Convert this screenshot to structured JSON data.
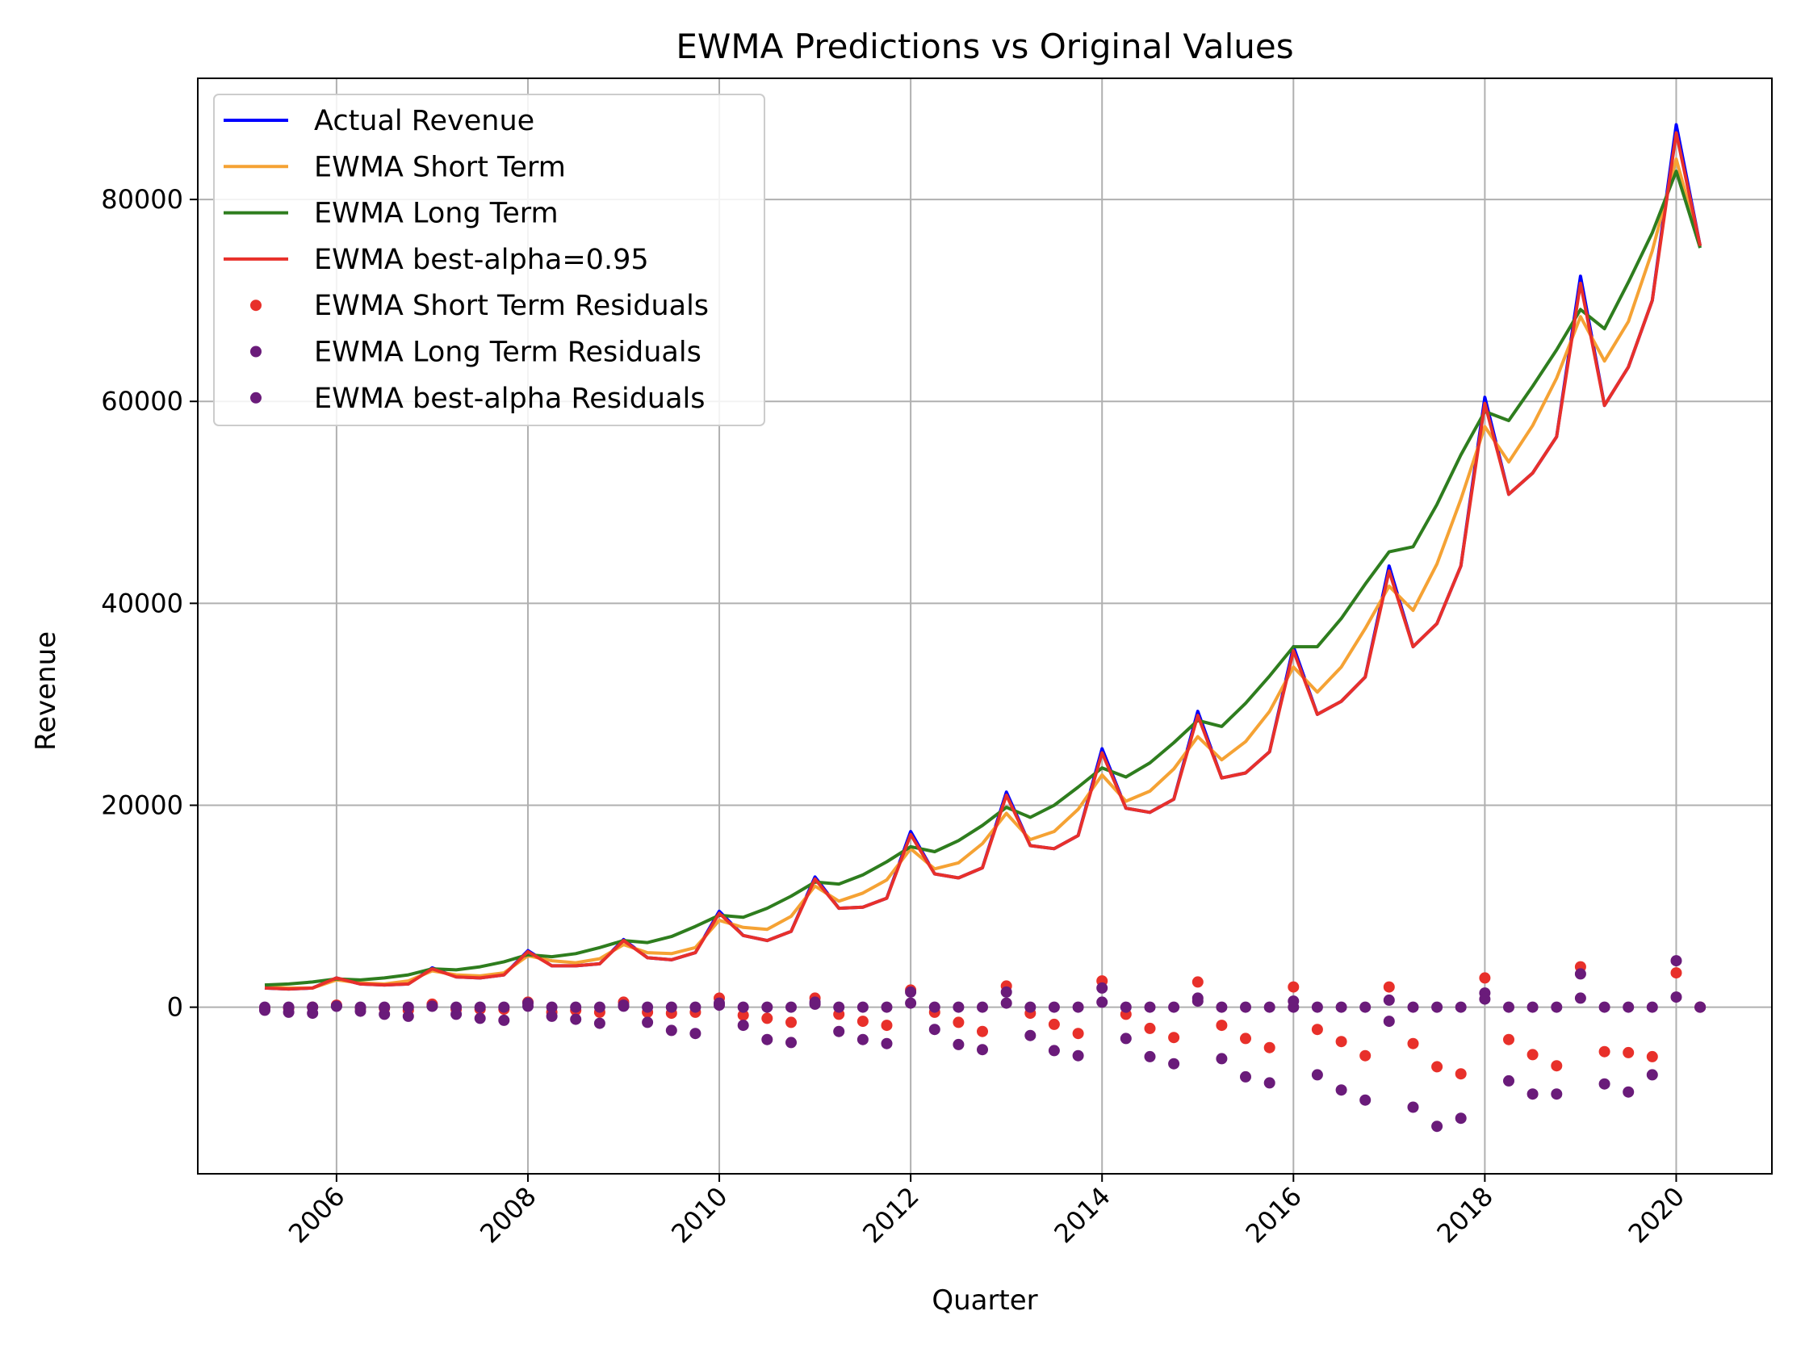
{
  "chart_data": {
    "type": "line",
    "title": "EWMA Predictions vs Original Values",
    "xlabel": "Quarter",
    "ylabel": "Revenue",
    "xlim": [
      2004.55,
      2021.0
    ],
    "ylim": [
      -16500,
      92000
    ],
    "x_ticks": [
      {
        "value": 2006,
        "label": "2006"
      },
      {
        "value": 2008,
        "label": "2008"
      },
      {
        "value": 2010,
        "label": "2010"
      },
      {
        "value": 2012,
        "label": "2012"
      },
      {
        "value": 2014,
        "label": "2014"
      },
      {
        "value": 2016,
        "label": "2016"
      },
      {
        "value": 2018,
        "label": "2018"
      },
      {
        "value": 2020,
        "label": "2020"
      }
    ],
    "y_ticks": [
      {
        "value": 0,
        "label": "0"
      },
      {
        "value": 20000,
        "label": "20000"
      },
      {
        "value": 40000,
        "label": "40000"
      },
      {
        "value": 60000,
        "label": "60000"
      },
      {
        "value": 80000,
        "label": "80000"
      }
    ],
    "grid": true,
    "legend_position": "top-left",
    "x_tick_rotation": "45 degrees",
    "x": [
      2005.25,
      2005.5,
      2005.75,
      2006,
      2006.25,
      2006.5,
      2006.75,
      2007,
      2007.25,
      2007.5,
      2007.75,
      2008,
      2008.25,
      2008.5,
      2008.75,
      2009,
      2009.25,
      2009.5,
      2009.75,
      2010,
      2010.25,
      2010.5,
      2010.75,
      2011,
      2011.25,
      2011.5,
      2011.75,
      2012,
      2012.25,
      2012.5,
      2012.75,
      2013,
      2013.25,
      2013.5,
      2013.75,
      2014,
      2014.25,
      2014.5,
      2014.75,
      2015,
      2015.25,
      2015.5,
      2015.75,
      2016,
      2016.25,
      2016.5,
      2016.75,
      2017,
      2017.25,
      2017.5,
      2017.75,
      2018,
      2018.25,
      2018.5,
      2018.75,
      2019,
      2019.25,
      2019.5,
      2019.75,
      2020,
      2020.25
    ],
    "series": [
      {
        "name": "Actual Revenue",
        "kind": "line",
        "color": "#0000ff",
        "values": [
          1900,
          1800,
          1900,
          2900,
          2300,
          2200,
          2300,
          3900,
          3000,
          2900,
          3200,
          5600,
          4100,
          4100,
          4300,
          6700,
          4900,
          4700,
          5400,
          9500,
          7100,
          6600,
          7500,
          12900,
          9800,
          9900,
          10800,
          17400,
          13200,
          12800,
          13800,
          21300,
          16000,
          15700,
          17000,
          25600,
          19700,
          19300,
          20600,
          29300,
          22700,
          23200,
          25300,
          35700,
          29000,
          30300,
          32700,
          43700,
          35700,
          38000,
          43700,
          60400,
          50800,
          52900,
          56500,
          72400,
          59600,
          63400,
          70000,
          87400,
          75400
        ]
      },
      {
        "name": "EWMA Short Term",
        "kind": "line",
        "color": "#f5a234",
        "values": [
          2000,
          1900,
          1900,
          2700,
          2400,
          2300,
          2600,
          3600,
          3200,
          3100,
          3400,
          5100,
          4600,
          4400,
          4800,
          6200,
          5400,
          5300,
          5900,
          8600,
          7900,
          7700,
          9000,
          12000,
          10500,
          11300,
          12600,
          15700,
          13700,
          14300,
          16200,
          19200,
          16600,
          17400,
          19600,
          23000,
          20400,
          21400,
          23600,
          26800,
          24500,
          26300,
          29300,
          33700,
          31200,
          33700,
          37500,
          41700,
          39300,
          43900,
          50300,
          57500,
          54000,
          57600,
          62300,
          68400,
          64000,
          67900,
          74900,
          84000,
          75400
        ]
      },
      {
        "name": "EWMA Long Term",
        "kind": "line",
        "color": "#2e7d1e",
        "values": [
          2200,
          2300,
          2500,
          2800,
          2700,
          2900,
          3200,
          3800,
          3700,
          4000,
          4500,
          5200,
          5000,
          5300,
          5900,
          6600,
          6400,
          7000,
          8000,
          9100,
          8900,
          9800,
          11000,
          12400,
          12200,
          13100,
          14400,
          15900,
          15400,
          16500,
          18000,
          19800,
          18800,
          20000,
          21800,
          23700,
          22800,
          24200,
          26200,
          28400,
          27800,
          30100,
          32800,
          35700,
          35700,
          38500,
          41900,
          45100,
          45600,
          49800,
          54700,
          59000,
          58100,
          61500,
          65100,
          69100,
          67200,
          71800,
          76700,
          82800,
          75200
        ]
      },
      {
        "name": "EWMA best-alpha=0.95",
        "kind": "line",
        "color": "#e8302a",
        "values": [
          1900,
          1800,
          1900,
          2900,
          2300,
          2200,
          2300,
          3800,
          3000,
          2900,
          3200,
          5500,
          4100,
          4100,
          4300,
          6600,
          4900,
          4700,
          5400,
          9300,
          7100,
          6600,
          7500,
          12700,
          9800,
          9900,
          10800,
          17100,
          13200,
          12800,
          13800,
          21000,
          16000,
          15700,
          17000,
          25200,
          19700,
          19300,
          20600,
          28900,
          22700,
          23200,
          25300,
          35300,
          29000,
          30300,
          32700,
          43200,
          35700,
          38000,
          43700,
          59800,
          50800,
          52900,
          56500,
          71700,
          59600,
          63400,
          70000,
          86600,
          75400
        ]
      },
      {
        "name": "EWMA Short Term Residuals",
        "kind": "scatter",
        "color": "#e8302a",
        "values": [
          -100,
          -100,
          0,
          200,
          -100,
          -100,
          -300,
          300,
          -200,
          -200,
          -200,
          500,
          -500,
          -300,
          -500,
          500,
          -500,
          -600,
          -500,
          900,
          -800,
          -1100,
          -1500,
          900,
          -700,
          -1400,
          -1800,
          1700,
          -500,
          -1500,
          -2400,
          2100,
          -600,
          -1700,
          -2600,
          2600,
          -700,
          -2100,
          -3000,
          2500,
          -1800,
          -3100,
          -4000,
          2000,
          -2200,
          -3400,
          -4800,
          2000,
          -3600,
          -5900,
          -6600,
          2900,
          -3200,
          -4700,
          -5800,
          4000,
          -4400,
          -4500,
          -4900,
          3400,
          0
        ]
      },
      {
        "name": "EWMA Long Term Residuals",
        "kind": "scatter",
        "color": "#6a1b7a",
        "values": [
          -300,
          -500,
          -600,
          100,
          -400,
          -700,
          -900,
          100,
          -700,
          -1100,
          -1300,
          400,
          -900,
          -1200,
          -1600,
          100,
          -1500,
          -2300,
          -2600,
          400,
          -1800,
          -3200,
          -3500,
          500,
          -2400,
          -3200,
          -3600,
          1500,
          -2200,
          -3700,
          -4200,
          1500,
          -2800,
          -4300,
          -4800,
          1900,
          -3100,
          -4900,
          -5600,
          900,
          -5100,
          -6900,
          -7500,
          0,
          -6700,
          -8200,
          -9200,
          -1400,
          -9900,
          -11800,
          -11000,
          1400,
          -7300,
          -8600,
          -8600,
          3300,
          -7600,
          -8400,
          -6700,
          4600,
          0
        ]
      },
      {
        "name": "EWMA best-alpha Residuals",
        "kind": "scatter",
        "color": "#6a1b7a",
        "values": [
          0,
          0,
          0,
          100,
          0,
          0,
          0,
          100,
          0,
          0,
          0,
          100,
          0,
          0,
          0,
          200,
          0,
          0,
          0,
          200,
          0,
          0,
          0,
          300,
          0,
          0,
          0,
          400,
          0,
          0,
          0,
          400,
          0,
          0,
          0,
          500,
          0,
          0,
          0,
          600,
          0,
          0,
          0,
          600,
          0,
          0,
          0,
          700,
          0,
          0,
          0,
          800,
          0,
          0,
          0,
          900,
          0,
          0,
          0,
          1000,
          0
        ]
      }
    ]
  }
}
